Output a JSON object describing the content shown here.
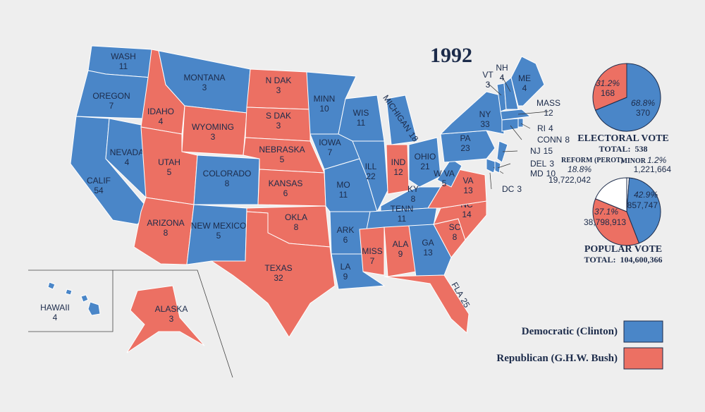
{
  "title": "1992",
  "legend": [
    {
      "label": "Democratic (Clinton)",
      "color": "#4a86c8"
    },
    {
      "label": "Republican (G.H.W. Bush)",
      "color": "#ec7063"
    }
  ],
  "states": [
    {
      "name": "WASH",
      "votes": 11,
      "party": 0
    },
    {
      "name": "OREGON",
      "votes": 7,
      "party": 0
    },
    {
      "name": "CALIF",
      "votes": 54,
      "party": 0
    },
    {
      "name": "NEVADA",
      "votes": 4,
      "party": 0
    },
    {
      "name": "IDAHO",
      "votes": 4,
      "party": 1
    },
    {
      "name": "MONTANA",
      "votes": 3,
      "party": 0
    },
    {
      "name": "WYOMING",
      "votes": 3,
      "party": 1
    },
    {
      "name": "UTAH",
      "votes": 5,
      "party": 1
    },
    {
      "name": "COLORADO",
      "votes": 8,
      "party": 0
    },
    {
      "name": "ARIZONA",
      "votes": 8,
      "party": 1
    },
    {
      "name": "NEW MEXICO",
      "votes": 5,
      "party": 0
    },
    {
      "name": "N DAK",
      "votes": 3,
      "party": 1
    },
    {
      "name": "S DAK",
      "votes": 3,
      "party": 1
    },
    {
      "name": "NEBRASKA",
      "votes": 5,
      "party": 1
    },
    {
      "name": "KANSAS",
      "votes": 6,
      "party": 1
    },
    {
      "name": "OKLA",
      "votes": 8,
      "party": 1
    },
    {
      "name": "TEXAS",
      "votes": 32,
      "party": 1
    },
    {
      "name": "MINN",
      "votes": 10,
      "party": 0
    },
    {
      "name": "IOWA",
      "votes": 7,
      "party": 0
    },
    {
      "name": "MO",
      "votes": 11,
      "party": 0
    },
    {
      "name": "ARK",
      "votes": 6,
      "party": 0
    },
    {
      "name": "LA",
      "votes": 9,
      "party": 0
    },
    {
      "name": "WIS",
      "votes": 11,
      "party": 0
    },
    {
      "name": "ILL",
      "votes": 22,
      "party": 0
    },
    {
      "name": "MICHIGAN",
      "votes": 18,
      "party": 0
    },
    {
      "name": "IND",
      "votes": 12,
      "party": 1
    },
    {
      "name": "OHIO",
      "votes": 21,
      "party": 0
    },
    {
      "name": "KY",
      "votes": 8,
      "party": 0
    },
    {
      "name": "TENN",
      "votes": 11,
      "party": 0
    },
    {
      "name": "MISS",
      "votes": 7,
      "party": 1
    },
    {
      "name": "ALA",
      "votes": 9,
      "party": 1
    },
    {
      "name": "GA",
      "votes": 13,
      "party": 0
    },
    {
      "name": "FLA",
      "votes": 25,
      "party": 1
    },
    {
      "name": "SC",
      "votes": 8,
      "party": 1
    },
    {
      "name": "NC",
      "votes": 14,
      "party": 1
    },
    {
      "name": "VA",
      "votes": 13,
      "party": 1
    },
    {
      "name": "W VA",
      "votes": 5,
      "party": 0
    },
    {
      "name": "PA",
      "votes": 23,
      "party": 0
    },
    {
      "name": "NY",
      "votes": 33,
      "party": 0
    },
    {
      "name": "MD",
      "votes": 10,
      "party": 0
    },
    {
      "name": "DEL",
      "votes": 3,
      "party": 0
    },
    {
      "name": "NJ",
      "votes": 15,
      "party": 0
    },
    {
      "name": "VT",
      "votes": 3,
      "party": 0
    },
    {
      "name": "NH",
      "votes": 4,
      "party": 0
    },
    {
      "name": "ME",
      "votes": 4,
      "party": 0
    },
    {
      "name": "MASS",
      "votes": 12,
      "party": 0
    },
    {
      "name": "CONN",
      "votes": 8,
      "party": 0
    },
    {
      "name": "RI",
      "votes": 4,
      "party": 0
    },
    {
      "name": "DC",
      "votes": 3,
      "party": 0
    },
    {
      "name": "ALASKA",
      "votes": 3,
      "party": 1
    },
    {
      "name": "HAWAII",
      "votes": 4,
      "party": 0
    }
  ],
  "electoral_vote": {
    "title": "ELECTORAL VOTE",
    "total": "TOTAL:  538",
    "slices": [
      {
        "percent": 68.8,
        "percent_label": "68.8%",
        "count": "370",
        "party": 0
      },
      {
        "percent": 31.2,
        "percent_label": "31.2%",
        "count": "168",
        "party": 1
      }
    ]
  },
  "popular_vote": {
    "title": "POPULAR VOTE",
    "total": "TOTAL:  104,600,366",
    "slices": [
      {
        "name": "MINOR",
        "percent": 1.2,
        "percent_label": "1.2%",
        "count": "1,221,664",
        "color": "#ffffff"
      },
      {
        "percent": 42.9,
        "percent_label": "42.9%",
        "count": "44,857,747",
        "party": 0
      },
      {
        "percent": 37.1,
        "percent_label": "37.1%",
        "count": "38,798,913",
        "party": 1
      },
      {
        "name": "REFORM (PEROT)",
        "percent": 18.8,
        "percent_label": "18.8%",
        "count": "19,722,042",
        "color": "#ffffff"
      }
    ]
  }
}
